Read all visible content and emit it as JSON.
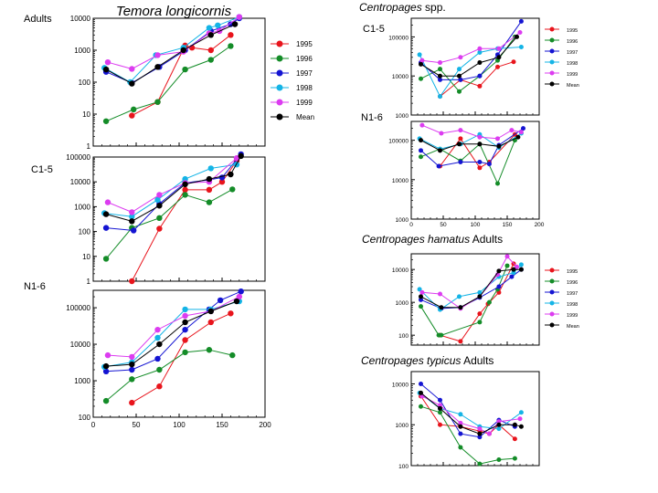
{
  "figure": {
    "title_left": "Temora longicornis",
    "sections": [
      {
        "species": "Centropages",
        "suffix": " spp."
      },
      {
        "species": "Centropages hamatus",
        "suffix": " Adults"
      },
      {
        "species": "Centropages typicus",
        "suffix": " Adults"
      }
    ]
  },
  "series_colors": {
    "1995": "#e8141c",
    "1996": "#148c28",
    "1997": "#1414d2",
    "1998": "#14b4e6",
    "1999": "#dc3cf0",
    "Mean": "#000000"
  },
  "chart_data": [
    {
      "id": "temora-adults",
      "type": "line",
      "yscale": "log",
      "title": "Adults",
      "xlim": [
        0,
        200
      ],
      "ylim": [
        1,
        10000
      ],
      "yticks": [
        1,
        10,
        100,
        1000,
        10000
      ],
      "ytick_labels": [
        "1",
        "10",
        "100",
        "1000",
        "10000"
      ],
      "legend": {
        "position": "right",
        "entries": [
          "1995",
          "1996",
          "1997",
          "1998",
          "1999",
          "Mean"
        ]
      },
      "series": [
        {
          "name": "1995",
          "x": [
            45,
            75,
            107,
            115,
            137,
            160
          ],
          "y": [
            9,
            24,
            1400,
            1200,
            1000,
            3000
          ]
        },
        {
          "name": "1996",
          "x": [
            15,
            47,
            75,
            107,
            137,
            160
          ],
          "y": [
            6,
            14,
            24,
            250,
            500,
            1350
          ]
        },
        {
          "name": "1997",
          "x": [
            15,
            45,
            77,
            107,
            137,
            160,
            170
          ],
          "y": [
            210,
            95,
            300,
            1000,
            4000,
            6500,
            10000
          ]
        },
        {
          "name": "1998",
          "x": [
            13,
            43,
            73,
            105,
            135,
            145,
            170
          ],
          "y": [
            280,
            100,
            700,
            1200,
            5000,
            6000,
            11000
          ]
        },
        {
          "name": "1999",
          "x": [
            17,
            45,
            75,
            105,
            135,
            147,
            170
          ],
          "y": [
            420,
            260,
            700,
            900,
            3400,
            4000,
            11000
          ]
        },
        {
          "name": "Mean",
          "x": [
            15,
            45,
            75,
            105,
            137,
            165
          ],
          "y": [
            250,
            90,
            300,
            1000,
            3000,
            6500
          ]
        }
      ]
    },
    {
      "id": "temora-c15",
      "type": "line",
      "yscale": "log",
      "title": "C1-5",
      "xlim": [
        0,
        200
      ],
      "ylim": [
        1,
        100000
      ],
      "yticks": [
        1,
        10,
        100,
        1000,
        10000,
        100000
      ],
      "ytick_labels": [
        "1",
        "10",
        "100",
        "1000",
        "10000",
        "100000"
      ],
      "series": [
        {
          "name": "1995",
          "x": [
            45,
            77,
            107,
            135,
            150,
            167
          ],
          "y": [
            1,
            130,
            4800,
            4800,
            10000,
            70000
          ]
        },
        {
          "name": "1996",
          "x": [
            15,
            45,
            77,
            107,
            135,
            162
          ],
          "y": [
            8,
            140,
            350,
            3000,
            1500,
            5000
          ]
        },
        {
          "name": "1997",
          "x": [
            15,
            47,
            77,
            107,
            135,
            150,
            172
          ],
          "y": [
            140,
            110,
            1300,
            9000,
            12000,
            15000,
            130000
          ]
        },
        {
          "name": "1998",
          "x": [
            13,
            45,
            75,
            107,
            137,
            167
          ],
          "y": [
            550,
            400,
            1900,
            13000,
            35000,
            50000
          ]
        },
        {
          "name": "1999",
          "x": [
            17,
            45,
            77,
            107,
            135,
            167
          ],
          "y": [
            1500,
            600,
            3000,
            9000,
            10000,
            90000
          ]
        },
        {
          "name": "Mean",
          "x": [
            15,
            45,
            77,
            107,
            135,
            160,
            172
          ],
          "y": [
            500,
            260,
            1100,
            8000,
            13000,
            20000,
            110000
          ]
        }
      ]
    },
    {
      "id": "temora-n16",
      "type": "line",
      "yscale": "log",
      "title": "N1-6",
      "xlim": [
        0,
        200
      ],
      "ylim": [
        100,
        300000
      ],
      "yticks": [
        100,
        1000,
        10000,
        100000
      ],
      "ytick_labels": [
        "100",
        "1000",
        "10000",
        "100000"
      ],
      "xticks": [
        0,
        50,
        100,
        150,
        200
      ],
      "xtick_labels": [
        "0",
        "50",
        "100",
        "150",
        "200"
      ],
      "series": [
        {
          "name": "1995",
          "x": [
            45,
            77,
            107,
            137,
            160
          ],
          "y": [
            250,
            700,
            13000,
            40000,
            70000
          ]
        },
        {
          "name": "1996",
          "x": [
            15,
            45,
            77,
            107,
            135,
            162
          ],
          "y": [
            280,
            1100,
            2000,
            6000,
            7000,
            5000
          ]
        },
        {
          "name": "1997",
          "x": [
            15,
            45,
            75,
            107,
            135,
            148,
            172
          ],
          "y": [
            1800,
            2000,
            4000,
            25000,
            90000,
            160000,
            280000
          ]
        },
        {
          "name": "1998",
          "x": [
            13,
            45,
            75,
            107,
            137,
            170
          ],
          "y": [
            2400,
            3200,
            15000,
            90000,
            90000,
            150000
          ]
        },
        {
          "name": "1999",
          "x": [
            17,
            45,
            75,
            107,
            137,
            170
          ],
          "y": [
            5000,
            4500,
            25000,
            60000,
            80000,
            200000
          ]
        },
        {
          "name": "Mean",
          "x": [
            15,
            45,
            77,
            107,
            137,
            167
          ],
          "y": [
            2500,
            2800,
            10000,
            40000,
            80000,
            150000
          ]
        }
      ]
    },
    {
      "id": "centropages-c15",
      "type": "line",
      "yscale": "log",
      "title": "C1-5",
      "xlim": [
        0,
        200
      ],
      "ylim": [
        1000,
        300000
      ],
      "yticks": [
        1000,
        10000,
        100000
      ],
      "ytick_labels": [
        "1000",
        "10000",
        "100000"
      ],
      "legend": {
        "position": "right",
        "entries": [
          "1995",
          "1996",
          "1997",
          "1998",
          "1999",
          "Mean"
        ]
      },
      "series": [
        {
          "name": "1995",
          "x": [
            45,
            77,
            107,
            135,
            160
          ],
          "y": [
            3000,
            8000,
            5500,
            17000,
            23000
          ]
        },
        {
          "name": "1996",
          "x": [
            15,
            45,
            75,
            107,
            135,
            162
          ],
          "y": [
            8500,
            15000,
            4000,
            10000,
            25000,
            100000
          ]
        },
        {
          "name": "1997",
          "x": [
            15,
            45,
            77,
            107,
            135,
            172
          ],
          "y": [
            22000,
            8000,
            8000,
            10000,
            35000,
            250000
          ]
        },
        {
          "name": "1998",
          "x": [
            13,
            45,
            75,
            107,
            135,
            172
          ],
          "y": [
            35000,
            3000,
            15000,
            40000,
            50000,
            55000
          ]
        },
        {
          "name": "1999",
          "x": [
            17,
            45,
            77,
            107,
            137,
            170
          ],
          "y": [
            25000,
            22000,
            30000,
            50000,
            50000,
            130000
          ]
        },
        {
          "name": "Mean",
          "x": [
            15,
            45,
            75,
            107,
            137,
            165
          ],
          "y": [
            20000,
            10000,
            10000,
            22000,
            30000,
            100000
          ]
        }
      ]
    },
    {
      "id": "centropages-n16",
      "type": "line",
      "yscale": "log",
      "title": "N1-6",
      "xlim": [
        0,
        200
      ],
      "ylim": [
        1000,
        300000
      ],
      "yticks": [
        1000,
        10000,
        100000
      ],
      "ytick_labels": [
        "1000",
        "10000",
        "100000"
      ],
      "xticks": [
        0,
        50,
        100,
        150,
        200
      ],
      "xtick_labels": [
        "0",
        "50",
        "100",
        "150",
        "200"
      ],
      "series": [
        {
          "name": "1995",
          "x": [
            45,
            77,
            107,
            122,
            162
          ],
          "y": [
            22000,
            110000,
            20000,
            28000,
            140000
          ]
        },
        {
          "name": "1996",
          "x": [
            15,
            45,
            77,
            107,
            135,
            162
          ],
          "y": [
            38000,
            60000,
            30000,
            80000,
            8000,
            100000
          ]
        },
        {
          "name": "1997",
          "x": [
            15,
            43,
            77,
            107,
            122,
            137,
            175
          ],
          "y": [
            55000,
            22000,
            28000,
            28000,
            25000,
            75000,
            200000
          ]
        },
        {
          "name": "1998",
          "x": [
            13,
            45,
            77,
            107,
            137,
            172
          ],
          "y": [
            110000,
            60000,
            80000,
            140000,
            65000,
            150000
          ]
        },
        {
          "name": "1999",
          "x": [
            17,
            47,
            77,
            107,
            135,
            157,
            172
          ],
          "y": [
            240000,
            150000,
            180000,
            120000,
            110000,
            180000,
            160000
          ]
        },
        {
          "name": "Mean",
          "x": [
            15,
            45,
            75,
            107,
            137,
            167
          ],
          "y": [
            100000,
            55000,
            80000,
            80000,
            70000,
            120000
          ]
        }
      ]
    },
    {
      "id": "hamatus-adults",
      "type": "line",
      "yscale": "log",
      "xlim": [
        0,
        200
      ],
      "ylim": [
        50,
        30000
      ],
      "yticks": [
        100,
        1000,
        10000
      ],
      "ytick_labels": [
        "100",
        "1000",
        "10000"
      ],
      "legend": {
        "position": "right",
        "entries": [
          "1995",
          "1996",
          "1997",
          "1998",
          "1999",
          "Mean"
        ]
      },
      "series": [
        {
          "name": "1995",
          "x": [
            45,
            77,
            107,
            120,
            137,
            160
          ],
          "y": [
            100,
            65,
            450,
            900,
            2000,
            15000
          ]
        },
        {
          "name": "1996",
          "x": [
            15,
            43,
            47,
            107,
            122,
            135,
            150
          ],
          "y": [
            750,
            100,
            100,
            250,
            1000,
            2500,
            13000
          ]
        },
        {
          "name": "1997",
          "x": [
            15,
            47,
            77,
            107,
            137,
            157,
            172
          ],
          "y": [
            1200,
            650,
            700,
            1400,
            3000,
            6000,
            10000
          ]
        },
        {
          "name": "1998",
          "x": [
            13,
            45,
            75,
            107,
            137,
            160,
            172
          ],
          "y": [
            2500,
            600,
            1500,
            2000,
            6000,
            8000,
            14000
          ]
        },
        {
          "name": "1999",
          "x": [
            17,
            45,
            77,
            107,
            135,
            150,
            165
          ],
          "y": [
            2000,
            1800,
            650,
            1500,
            7000,
            25000,
            12000
          ]
        },
        {
          "name": "Mean",
          "x": [
            15,
            47,
            77,
            107,
            137,
            160,
            172
          ],
          "y": [
            1500,
            700,
            700,
            1500,
            9000,
            10000,
            10000
          ]
        }
      ]
    },
    {
      "id": "typicus-adults",
      "type": "line",
      "yscale": "log",
      "xlim": [
        0,
        200
      ],
      "ylim": [
        100,
        20000
      ],
      "yticks": [
        100,
        1000,
        10000
      ],
      "ytick_labels": [
        "100",
        "1000",
        "10000"
      ],
      "series": [
        {
          "name": "1995",
          "x": [
            15,
            45,
            77,
            107,
            122,
            137,
            162
          ],
          "y": [
            5000,
            1000,
            900,
            700,
            600,
            1000,
            450
          ]
        },
        {
          "name": "1996",
          "x": [
            15,
            45,
            77,
            107,
            137,
            162
          ],
          "y": [
            2800,
            2000,
            280,
            110,
            140,
            150
          ]
        },
        {
          "name": "1997",
          "x": [
            15,
            45,
            77,
            107,
            137,
            162
          ],
          "y": [
            10000,
            4000,
            600,
            500,
            1300,
            900
          ]
        },
        {
          "name": "1998",
          "x": [
            13,
            45,
            77,
            107,
            137,
            172
          ],
          "y": [
            6000,
            2500,
            1800,
            900,
            800,
            2000
          ]
        },
        {
          "name": "1999",
          "x": [
            17,
            45,
            77,
            107,
            122,
            137,
            170
          ],
          "y": [
            5000,
            3000,
            1100,
            800,
            600,
            1200,
            1400
          ]
        },
        {
          "name": "Mean",
          "x": [
            15,
            45,
            77,
            107,
            137,
            162,
            172
          ],
          "y": [
            6000,
            2500,
            900,
            600,
            1000,
            1000,
            900
          ]
        }
      ]
    }
  ]
}
